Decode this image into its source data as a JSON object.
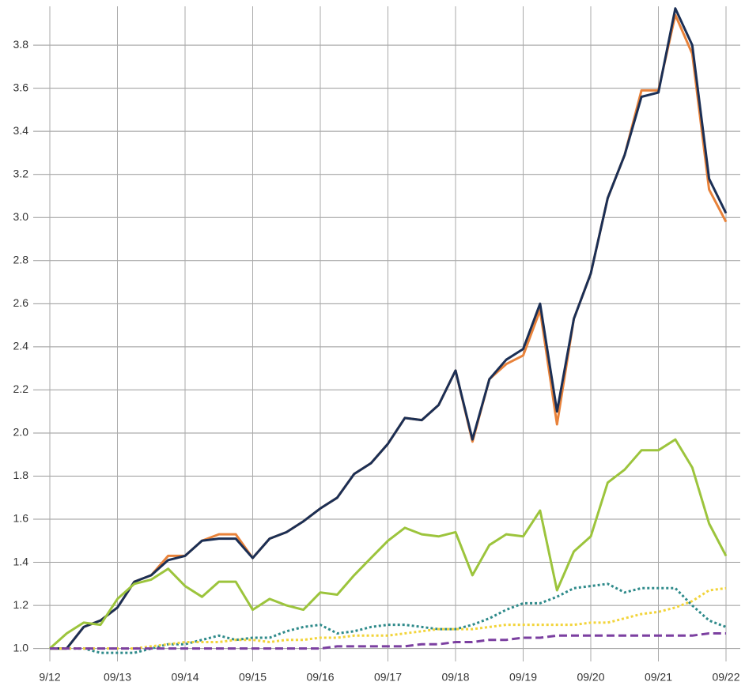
{
  "chart_data": {
    "type": "line",
    "categories": [
      "9/12",
      null,
      null,
      null,
      "09/13",
      null,
      null,
      null,
      "09/14",
      null,
      null,
      null,
      "09/15",
      null,
      null,
      null,
      "09/16",
      null,
      null,
      null,
      "09/17",
      null,
      null,
      null,
      "09/18",
      null,
      null,
      null,
      "09/19",
      null,
      null,
      null,
      "09/20",
      null,
      null,
      null,
      "09/21",
      null,
      null,
      null,
      "09/22"
    ],
    "ylim": [
      0.94,
      3.98
    ],
    "yticks": [
      {
        "value": 1,
        "label": "1.0"
      },
      {
        "value": 1.2,
        "label": "1.2"
      },
      {
        "value": 1.4,
        "label": "1.4"
      },
      {
        "value": 1.6,
        "label": "1.6"
      },
      {
        "value": 1.8,
        "label": "1.8"
      },
      {
        "value": 2,
        "label": "2.0"
      },
      {
        "value": 2.2,
        "label": "2.2"
      },
      {
        "value": 2.4,
        "label": "2.4"
      },
      {
        "value": 2.6,
        "label": "2.6"
      },
      {
        "value": 2.8,
        "label": "2.8"
      },
      {
        "value": 3,
        "label": "3.0"
      },
      {
        "value": 3.2,
        "label": "3.2"
      },
      {
        "value": 3.4,
        "label": "3.4"
      },
      {
        "value": 3.6,
        "label": "3.6"
      },
      {
        "value": 3.8,
        "label": "3.8"
      }
    ],
    "grid": true,
    "series": [
      {
        "color": "#e8823a",
        "dash": "solid",
        "values": [
          1.0,
          1.0,
          1.1,
          1.13,
          1.19,
          1.31,
          1.34,
          1.43,
          1.43,
          1.5,
          1.53,
          1.53,
          1.42,
          1.51,
          1.54,
          1.59,
          1.65,
          1.7,
          1.81,
          1.86,
          1.95,
          2.07,
          2.06,
          2.13,
          2.29,
          1.96,
          2.25,
          2.32,
          2.36,
          2.57,
          2.04,
          2.53,
          2.74,
          3.09,
          3.29,
          3.59,
          3.59,
          3.94,
          3.76,
          3.13,
          2.98
        ]
      },
      {
        "color": "#1b2f55",
        "dash": "solid",
        "values": [
          1.0,
          1.0,
          1.1,
          1.13,
          1.19,
          1.31,
          1.34,
          1.41,
          1.43,
          1.5,
          1.51,
          1.51,
          1.42,
          1.51,
          1.54,
          1.59,
          1.65,
          1.7,
          1.81,
          1.86,
          1.95,
          2.07,
          2.06,
          2.13,
          2.29,
          1.97,
          2.25,
          2.34,
          2.39,
          2.6,
          2.1,
          2.53,
          2.74,
          3.09,
          3.29,
          3.56,
          3.58,
          3.97,
          3.8,
          3.18,
          3.02
        ]
      },
      {
        "color": "#9cc43c",
        "dash": "solid",
        "values": [
          1.0,
          1.07,
          1.12,
          1.11,
          1.23,
          1.3,
          1.32,
          1.37,
          1.29,
          1.24,
          1.31,
          1.31,
          1.18,
          1.23,
          1.2,
          1.18,
          1.26,
          1.25,
          1.34,
          1.42,
          1.5,
          1.56,
          1.53,
          1.52,
          1.54,
          1.34,
          1.48,
          1.53,
          1.52,
          1.64,
          1.27,
          1.45,
          1.52,
          1.77,
          1.83,
          1.92,
          1.92,
          1.97,
          1.84,
          1.58,
          1.43
        ]
      },
      {
        "color": "#2e8a8a",
        "dash": "dotted",
        "values": [
          1.0,
          1.0,
          1.0,
          0.98,
          0.98,
          0.98,
          1.0,
          1.02,
          1.02,
          1.04,
          1.06,
          1.04,
          1.05,
          1.05,
          1.08,
          1.1,
          1.11,
          1.07,
          1.08,
          1.1,
          1.11,
          1.11,
          1.1,
          1.09,
          1.09,
          1.11,
          1.14,
          1.18,
          1.21,
          1.21,
          1.24,
          1.28,
          1.29,
          1.3,
          1.26,
          1.28,
          1.28,
          1.28,
          1.2,
          1.13,
          1.1
        ]
      },
      {
        "color": "#f2d43a",
        "dash": "dotted",
        "values": [
          1.0,
          1.0,
          1.0,
          1.0,
          1.0,
          1.0,
          1.01,
          1.02,
          1.03,
          1.03,
          1.03,
          1.04,
          1.04,
          1.03,
          1.04,
          1.04,
          1.05,
          1.05,
          1.06,
          1.06,
          1.06,
          1.07,
          1.08,
          1.09,
          1.09,
          1.09,
          1.1,
          1.11,
          1.11,
          1.11,
          1.11,
          1.11,
          1.12,
          1.12,
          1.14,
          1.16,
          1.17,
          1.19,
          1.22,
          1.27,
          1.28
        ]
      },
      {
        "color": "#7b3fa0",
        "dash": "dashed",
        "values": [
          1.0,
          1.0,
          1.0,
          1.0,
          1.0,
          1.0,
          1.0,
          1.0,
          1.0,
          1.0,
          1.0,
          1.0,
          1.0,
          1.0,
          1.0,
          1.0,
          1.0,
          1.01,
          1.01,
          1.01,
          1.01,
          1.01,
          1.02,
          1.02,
          1.03,
          1.03,
          1.04,
          1.04,
          1.05,
          1.05,
          1.06,
          1.06,
          1.06,
          1.06,
          1.06,
          1.06,
          1.06,
          1.06,
          1.06,
          1.07,
          1.07
        ]
      }
    ]
  }
}
